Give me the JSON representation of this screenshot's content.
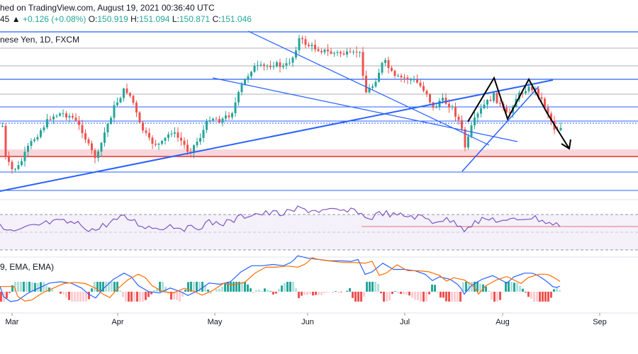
{
  "header": {
    "published_text": "hed on TradingView.com, August 19, 2021 00:36:40 UTC",
    "ohlc_prefix": "45",
    "change": "+0.126 (+0.08%)",
    "o_label": "O:",
    "o_value": "150.919",
    "h_label": "H:",
    "h_value": "151.094",
    "l_label": "L:",
    "l_value": "150.871",
    "c_label": "C:",
    "c_value": "151.046"
  },
  "main_pane": {
    "symbol_label": "nese Yen, 1D, FXCM"
  },
  "macd_pane": {
    "label": "9, EMA, EMA)"
  },
  "colors": {
    "up": "#26a69a",
    "down": "#ef5350",
    "blue_line": "#2962ff",
    "rsi_line": "#7e57c2",
    "rsi_band": "#ede7f6",
    "zone": "#f8d7dc",
    "hist_up_dark": "#26a69a",
    "hist_up_light": "#b2dfdb",
    "hist_down_dark": "#ef5350",
    "hist_down_light": "#ffcdd2",
    "macd_line": "#2962ff",
    "signal_line": "#ff6d00"
  },
  "chart_data": {
    "type": "candlestick",
    "x_tick_labels": [
      "Mar",
      "Apr",
      "May",
      "Jun",
      "Jul",
      "Aug",
      "Sep"
    ],
    "annotations": [
      "double top pattern",
      "down arrow",
      "ascending trendline",
      "descending channel",
      "horizontal support/resistance levels",
      "support zone"
    ],
    "rsi": {
      "series": "RSI",
      "band": "dashed upper/lower levels"
    },
    "macd": {
      "series": [
        "MACD",
        "Signal",
        "Histogram"
      ]
    }
  }
}
